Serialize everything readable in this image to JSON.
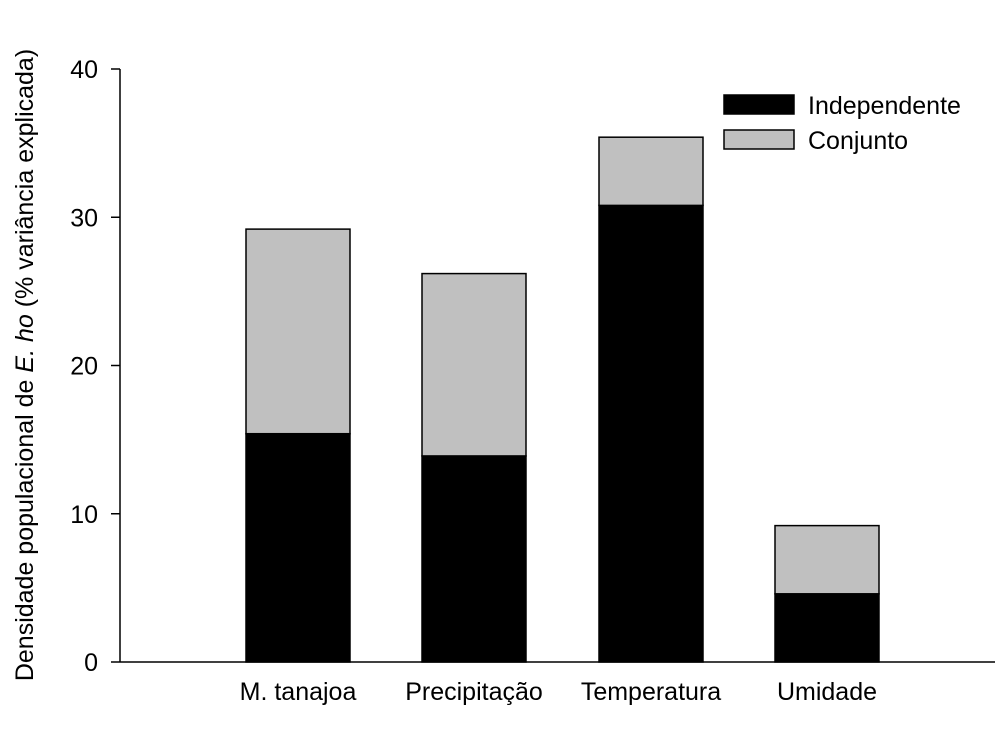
{
  "chart_data": {
    "type": "bar",
    "stacked": true,
    "categories": [
      "M. tanajoa",
      "Precipitação",
      "Temperatura",
      "Umidade"
    ],
    "series": [
      {
        "name": "Independente",
        "values": [
          15.4,
          13.9,
          30.8,
          4.6
        ],
        "color": "#000000"
      },
      {
        "name": "Conjunto",
        "values": [
          13.8,
          12.3,
          4.6,
          4.6
        ],
        "color": "#c0c0c0"
      }
    ],
    "ylabel_parts": [
      "Densidade populacional de ",
      "E. ho",
      " (% variância explicada)"
    ],
    "ylim": [
      0,
      40
    ],
    "yticks": [
      "0",
      "10",
      "20",
      "30",
      "40"
    ],
    "grid": false,
    "legend_position": "top-right"
  }
}
